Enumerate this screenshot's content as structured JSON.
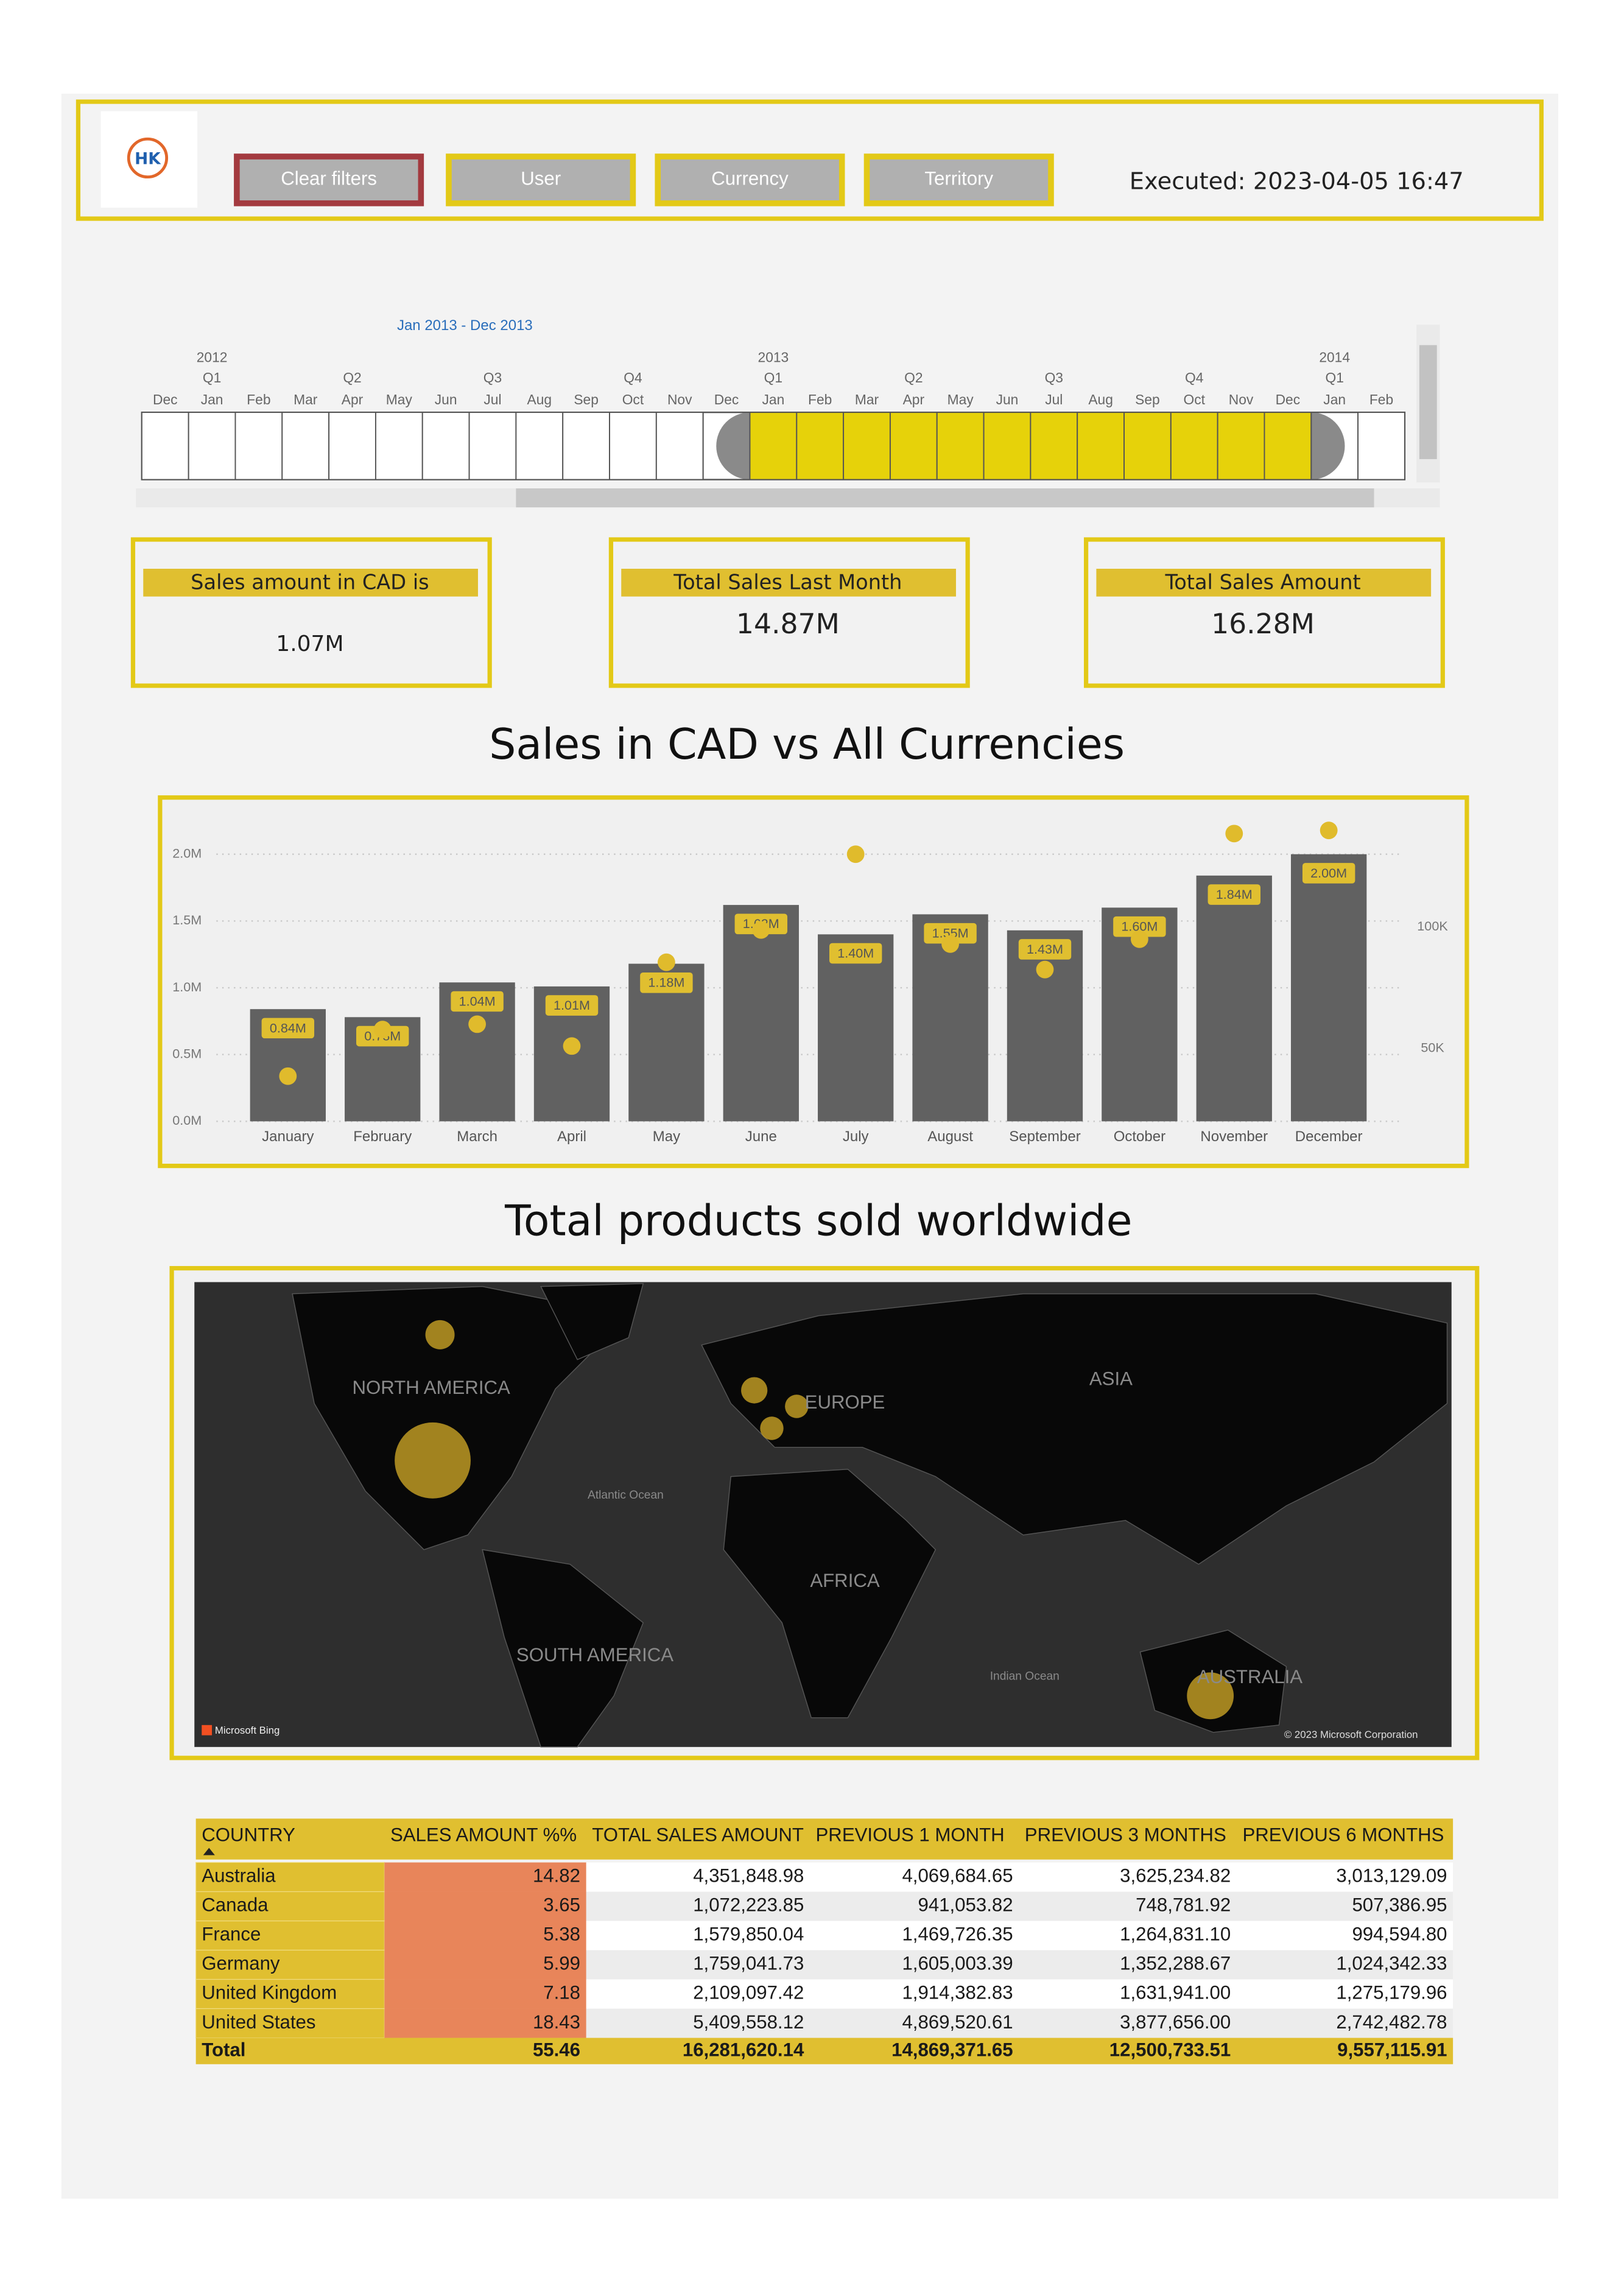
{
  "header": {
    "logo": "HK",
    "buttons": [
      "Clear filters",
      "User",
      "Currency",
      "Territory"
    ],
    "executed": "Executed: 2023-04-05 16:47"
  },
  "timeline": {
    "range_label": "Jan 2013 - Dec 2013",
    "years": [
      null,
      "2012",
      null,
      null,
      null,
      null,
      null,
      null,
      null,
      null,
      null,
      null,
      null,
      "2013",
      null,
      null,
      null,
      null,
      null,
      null,
      null,
      null,
      null,
      null,
      null,
      "2014",
      null
    ],
    "quarters": [
      null,
      "Q1",
      null,
      null,
      "Q2",
      null,
      null,
      "Q3",
      null,
      null,
      "Q4",
      null,
      null,
      "Q1",
      null,
      null,
      "Q2",
      null,
      null,
      "Q3",
      null,
      null,
      "Q4",
      null,
      null,
      "Q1",
      null
    ],
    "months": [
      "Dec",
      "Jan",
      "Feb",
      "Mar",
      "Apr",
      "May",
      "Jun",
      "Jul",
      "Aug",
      "Sep",
      "Oct",
      "Nov",
      "Dec",
      "Jan",
      "Feb",
      "Mar",
      "Apr",
      "May",
      "Jun",
      "Jul",
      "Aug",
      "Sep",
      "Oct",
      "Nov",
      "Dec",
      "Jan",
      "Feb"
    ]
  },
  "cards": [
    {
      "title": "Sales amount in CAD is",
      "value": "1.07M"
    },
    {
      "title": "Total Sales Last Month",
      "value": "14.87M"
    },
    {
      "title": "Total Sales Amount",
      "value": "16.28M"
    }
  ],
  "chart_data": {
    "type": "bar",
    "title": "Sales in CAD vs All Currencies",
    "categories": [
      "January",
      "February",
      "March",
      "April",
      "May",
      "June",
      "July",
      "August",
      "September",
      "October",
      "November",
      "December"
    ],
    "series": [
      {
        "color": "#616161",
        "values": [
          840000,
          780000,
          1040000,
          1010000,
          1180000,
          1620000,
          1400000,
          1550000,
          1430000,
          1600000,
          1840000,
          2000000
        ],
        "value_labels": [
          "0.84M",
          "0.78M",
          "1.04M",
          "1.01M",
          "1.18M",
          "1.62M",
          "1.40M",
          "1.55M",
          "1.43M",
          "1.60M",
          "1.84M",
          "2.00M"
        ]
      },
      {
        "type": "scatter",
        "axis": "y2",
        "color": "#e0bb2c",
        "values": [
          38600,
          57800,
          60000,
          51000,
          85500,
          98800,
          130000,
          93000,
          82500,
          95000,
          138500,
          139800
        ]
      }
    ],
    "ylim": [
      0,
      2200000
    ],
    "yticks": [
      {
        "value": 0,
        "label": "0.0M"
      },
      {
        "value": 500000,
        "label": "0.5M"
      },
      {
        "value": 1000000,
        "label": "1.0M"
      },
      {
        "value": 1500000,
        "label": "1.5M"
      },
      {
        "value": 2000000,
        "label": "2.0M"
      }
    ],
    "y2lim": [
      20000,
      141000
    ],
    "y2ticks": [
      {
        "value": 50000,
        "label": "50K"
      },
      {
        "value": 100000,
        "label": "100K"
      }
    ],
    "grid": true
  },
  "map": {
    "title": "Total products sold worldwide",
    "labels": [
      "NORTH AMERICA",
      "EUROPE",
      "ASIA",
      "AFRICA",
      "SOUTH AMERICA",
      "AUSTRALIA",
      "Atlantic Ocean",
      "Indian Ocean"
    ],
    "provider": "Microsoft Bing",
    "copyright": "© 2023 Microsoft Corporation"
  },
  "table": {
    "columns": [
      "COUNTRY",
      "SALES AMOUNT %%",
      "TOTAL SALES AMOUNT",
      "PREVIOUS 1 MONTH",
      "PREVIOUS 3 MONTHS",
      "PREVIOUS 6 MONTHS"
    ],
    "rows": [
      [
        "Australia",
        "14.82",
        "4,351,848.98",
        "4,069,684.65",
        "3,625,234.82",
        "3,013,129.09"
      ],
      [
        "Canada",
        "3.65",
        "1,072,223.85",
        "941,053.82",
        "748,781.92",
        "507,386.95"
      ],
      [
        "France",
        "5.38",
        "1,579,850.04",
        "1,469,726.35",
        "1,264,831.10",
        "994,594.80"
      ],
      [
        "Germany",
        "5.99",
        "1,759,041.73",
        "1,605,003.39",
        "1,352,288.67",
        "1,024,342.33"
      ],
      [
        "United Kingdom",
        "7.18",
        "2,109,097.42",
        "1,914,382.83",
        "1,631,941.00",
        "1,275,179.96"
      ],
      [
        "United States",
        "18.43",
        "5,409,558.12",
        "4,869,520.61",
        "3,877,656.00",
        "2,742,482.78"
      ]
    ],
    "total": [
      "Total",
      "55.46",
      "16,281,620.14",
      "14,869,371.65",
      "12,500,733.51",
      "9,557,115.91"
    ]
  }
}
